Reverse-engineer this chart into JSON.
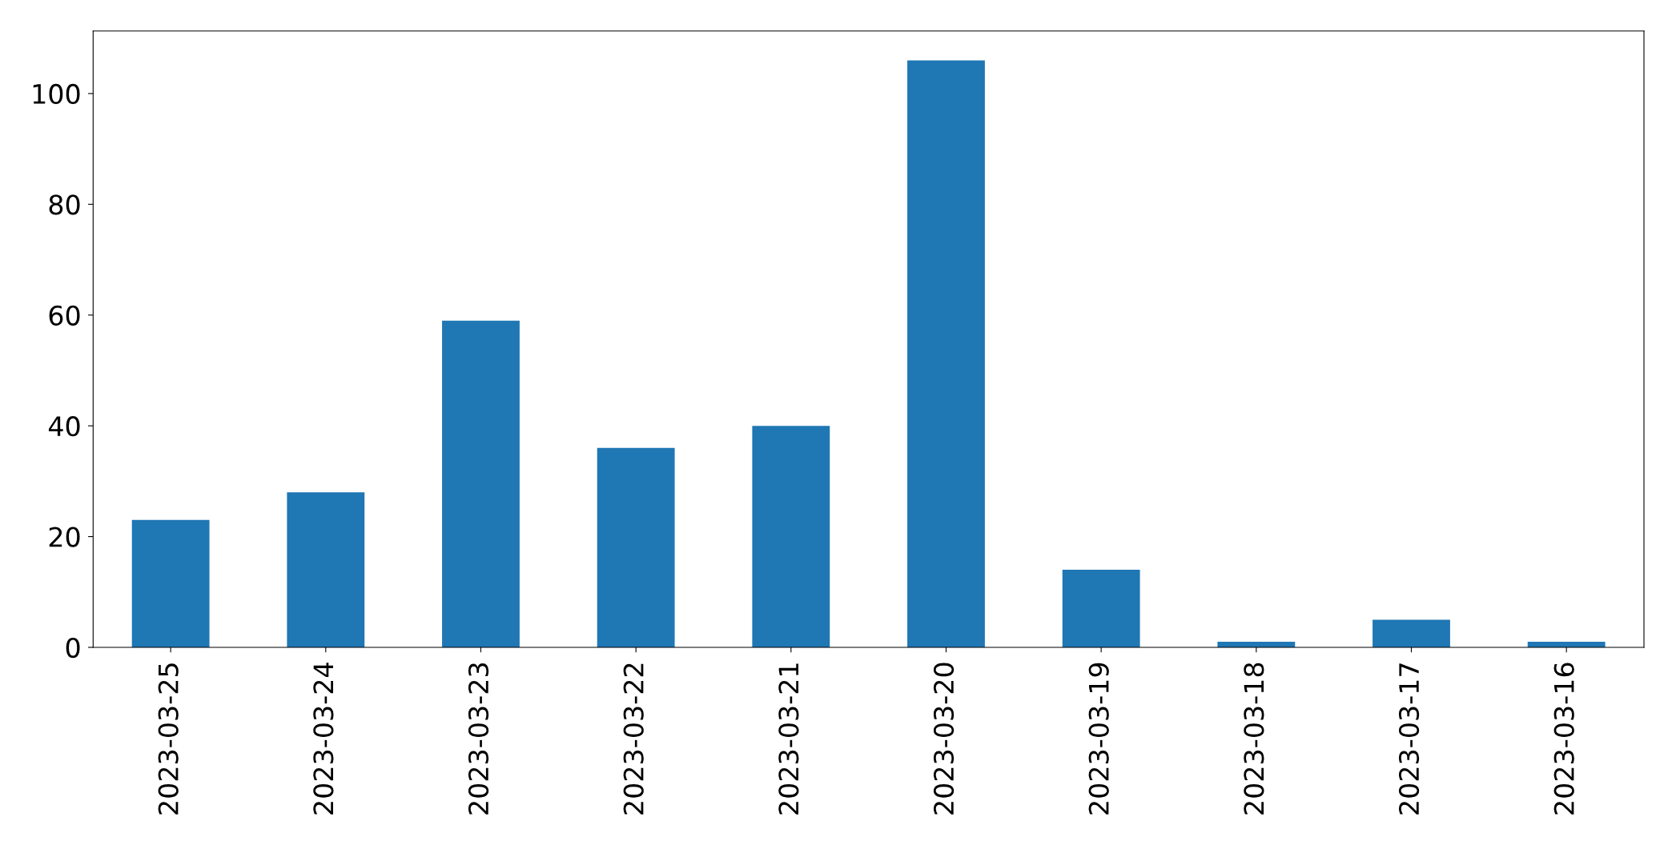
{
  "chart_data": {
    "type": "bar",
    "categories": [
      "2023-03-25",
      "2023-03-24",
      "2023-03-23",
      "2023-03-22",
      "2023-03-21",
      "2023-03-20",
      "2023-03-19",
      "2023-03-18",
      "2023-03-17",
      "2023-03-16"
    ],
    "values": [
      23,
      28,
      59,
      36,
      40,
      106,
      14,
      1,
      5,
      1
    ],
    "color": "#1f77b4",
    "ylim": [
      0,
      111.3
    ],
    "yticks": [
      0,
      20,
      40,
      60,
      80,
      100
    ]
  }
}
